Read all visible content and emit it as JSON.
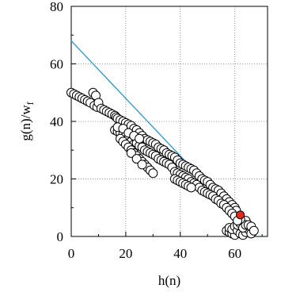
{
  "chart_data": {
    "type": "scatter",
    "xlabel": "h(n)",
    "ylabel_main": "g(n)/w",
    "ylabel_sub": "f",
    "xlim": [
      0,
      72
    ],
    "ylim": [
      0,
      80
    ],
    "xticks": [
      0,
      20,
      40,
      60
    ],
    "yticks": [
      0,
      20,
      40,
      60,
      80
    ],
    "grid": "dotted",
    "colors": {
      "line": "#3a9bc9",
      "highlight": "#e8281e",
      "marker_edge": "#000000",
      "marker_fill": "#ffffff"
    },
    "line": {
      "x": [
        0,
        68
      ],
      "y": [
        68,
        0
      ]
    },
    "highlight_point": {
      "x": 62,
      "y": 7.5
    },
    "series": [
      {
        "marker": "circle",
        "points": [
          [
            0,
            50
          ],
          [
            1,
            49.5
          ],
          [
            2,
            49
          ],
          [
            3,
            48.5
          ],
          [
            4,
            48
          ],
          [
            5,
            47.5
          ],
          [
            6,
            47
          ],
          [
            7,
            46.5
          ],
          [
            8,
            50
          ],
          [
            9,
            49
          ],
          [
            8.5,
            45.5
          ],
          [
            9.5,
            45
          ],
          [
            10,
            46.5
          ],
          [
            11,
            44.5
          ],
          [
            12,
            44
          ],
          [
            13,
            43.5
          ],
          [
            14,
            43
          ],
          [
            15,
            42.5
          ],
          [
            16,
            42
          ],
          [
            16.5,
            41.5
          ],
          [
            17,
            41
          ],
          [
            18,
            40.5
          ],
          [
            19,
            40
          ],
          [
            20,
            39.5
          ],
          [
            21,
            39
          ],
          [
            22,
            38.5
          ],
          [
            23,
            37.5
          ],
          [
            24,
            37
          ],
          [
            25,
            36
          ],
          [
            26,
            35
          ],
          [
            27,
            34
          ],
          [
            28,
            33.5
          ],
          [
            29,
            33
          ],
          [
            30,
            32.5
          ],
          [
            31,
            32
          ],
          [
            32,
            31
          ],
          [
            33,
            30.5
          ],
          [
            34,
            30
          ],
          [
            35,
            29
          ],
          [
            36,
            28.5
          ],
          [
            37,
            28
          ],
          [
            38,
            27.5
          ],
          [
            39,
            26.5
          ],
          [
            40,
            25.5
          ],
          [
            41,
            25
          ],
          [
            42,
            24.5
          ],
          [
            43,
            24
          ],
          [
            44,
            23.5
          ],
          [
            45,
            23
          ],
          [
            46,
            22
          ],
          [
            47,
            21
          ],
          [
            48,
            20
          ],
          [
            49,
            19.5
          ],
          [
            50,
            19
          ],
          [
            51,
            18
          ],
          [
            52,
            17
          ],
          [
            53,
            16.5
          ],
          [
            54,
            16
          ],
          [
            55,
            15
          ],
          [
            56,
            14
          ],
          [
            57,
            13
          ],
          [
            58,
            12
          ],
          [
            59,
            11
          ],
          [
            60,
            10
          ],
          [
            60.5,
            9
          ],
          [
            16,
            37
          ],
          [
            17,
            36.5
          ],
          [
            18,
            36
          ],
          [
            19,
            35.5
          ],
          [
            20,
            35
          ],
          [
            21,
            34
          ],
          [
            22,
            33
          ],
          [
            23,
            32
          ],
          [
            24,
            32.5
          ],
          [
            25,
            31.5
          ],
          [
            26,
            31
          ],
          [
            27,
            30
          ],
          [
            28,
            29.5
          ],
          [
            29,
            29
          ],
          [
            30,
            28.5
          ],
          [
            31,
            28
          ],
          [
            32,
            27
          ],
          [
            33,
            26.5
          ],
          [
            34,
            26
          ],
          [
            35,
            25.5
          ],
          [
            36,
            25
          ],
          [
            37,
            24
          ],
          [
            38,
            22.5
          ],
          [
            39,
            22
          ],
          [
            40,
            21.5
          ],
          [
            41,
            21
          ],
          [
            42,
            20.5
          ],
          [
            43,
            20
          ],
          [
            44,
            19
          ],
          [
            45,
            18.5
          ],
          [
            46,
            18
          ],
          [
            47,
            17
          ],
          [
            48,
            16
          ],
          [
            49,
            15.5
          ],
          [
            50,
            15
          ],
          [
            51,
            14.5
          ],
          [
            52,
            14
          ],
          [
            53,
            13
          ],
          [
            54,
            12.5
          ],
          [
            55,
            11.5
          ],
          [
            56,
            11
          ],
          [
            57,
            10
          ],
          [
            58,
            9
          ],
          [
            59,
            8
          ],
          [
            60,
            7
          ],
          [
            18,
            34
          ],
          [
            19,
            33
          ],
          [
            20,
            32
          ],
          [
            21,
            31
          ],
          [
            22,
            30
          ],
          [
            23,
            29
          ],
          [
            24,
            28
          ],
          [
            25,
            27
          ],
          [
            26,
            26
          ],
          [
            27,
            25
          ],
          [
            28,
            24
          ],
          [
            29,
            23
          ],
          [
            30,
            22
          ],
          [
            38,
            20
          ],
          [
            39,
            19.5
          ],
          [
            40,
            19
          ],
          [
            41,
            18.5
          ],
          [
            42,
            18
          ],
          [
            43,
            17.5
          ],
          [
            44,
            17
          ],
          [
            17,
            38
          ],
          [
            19,
            37.5
          ],
          [
            21,
            36
          ],
          [
            23,
            35
          ],
          [
            25,
            34
          ],
          [
            22,
            29
          ],
          [
            24,
            27
          ],
          [
            26,
            25
          ],
          [
            57,
            2
          ],
          [
            58,
            1.5
          ],
          [
            59,
            1
          ],
          [
            60,
            0.5
          ],
          [
            58,
            3
          ],
          [
            59,
            2.5
          ],
          [
            60,
            3.5
          ],
          [
            61,
            2
          ],
          [
            62,
            1
          ],
          [
            63,
            0.5
          ],
          [
            64,
            1.5
          ],
          [
            65,
            2.5
          ],
          [
            66,
            1
          ],
          [
            61,
            4
          ],
          [
            62,
            4.5
          ],
          [
            63,
            5
          ],
          [
            64,
            5.5
          ],
          [
            63,
            3
          ],
          [
            64,
            4
          ],
          [
            65,
            4
          ],
          [
            66,
            3.5
          ],
          [
            67,
            2
          ],
          [
            62,
            6
          ],
          [
            61,
            5.5
          ]
        ]
      }
    ]
  }
}
